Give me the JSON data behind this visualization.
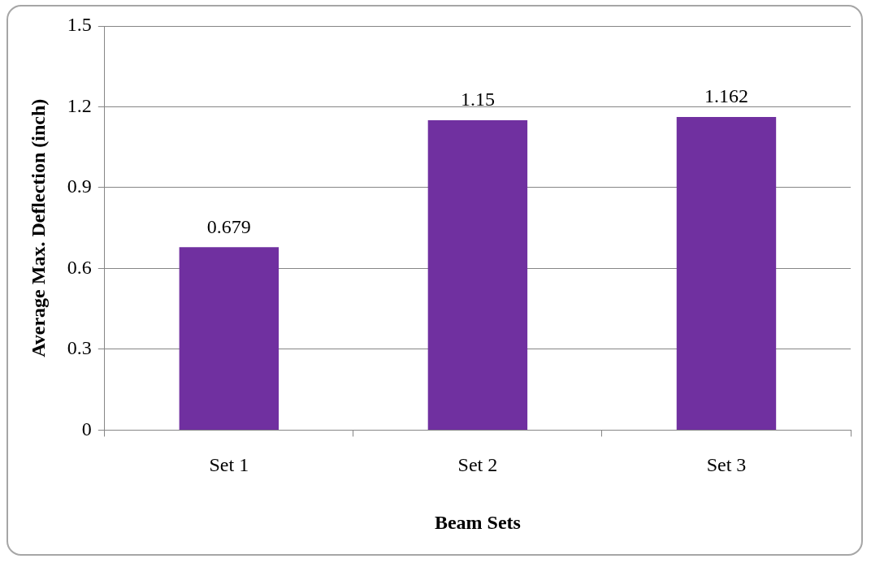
{
  "chart_data": {
    "type": "bar",
    "xlabel": "Beam Sets",
    "ylabel": "Average Max. Deflection (inch)",
    "categories": [
      "Set 1",
      "Set 2",
      "Set 3"
    ],
    "values": [
      0.679,
      1.15,
      1.162
    ],
    "color": "#7030a0",
    "ylim": [
      0,
      1.5
    ],
    "yticks": [
      0,
      0.3,
      0.6,
      0.9,
      1.2,
      1.5
    ],
    "grid": "y",
    "data_labels": true,
    "legend": false
  }
}
